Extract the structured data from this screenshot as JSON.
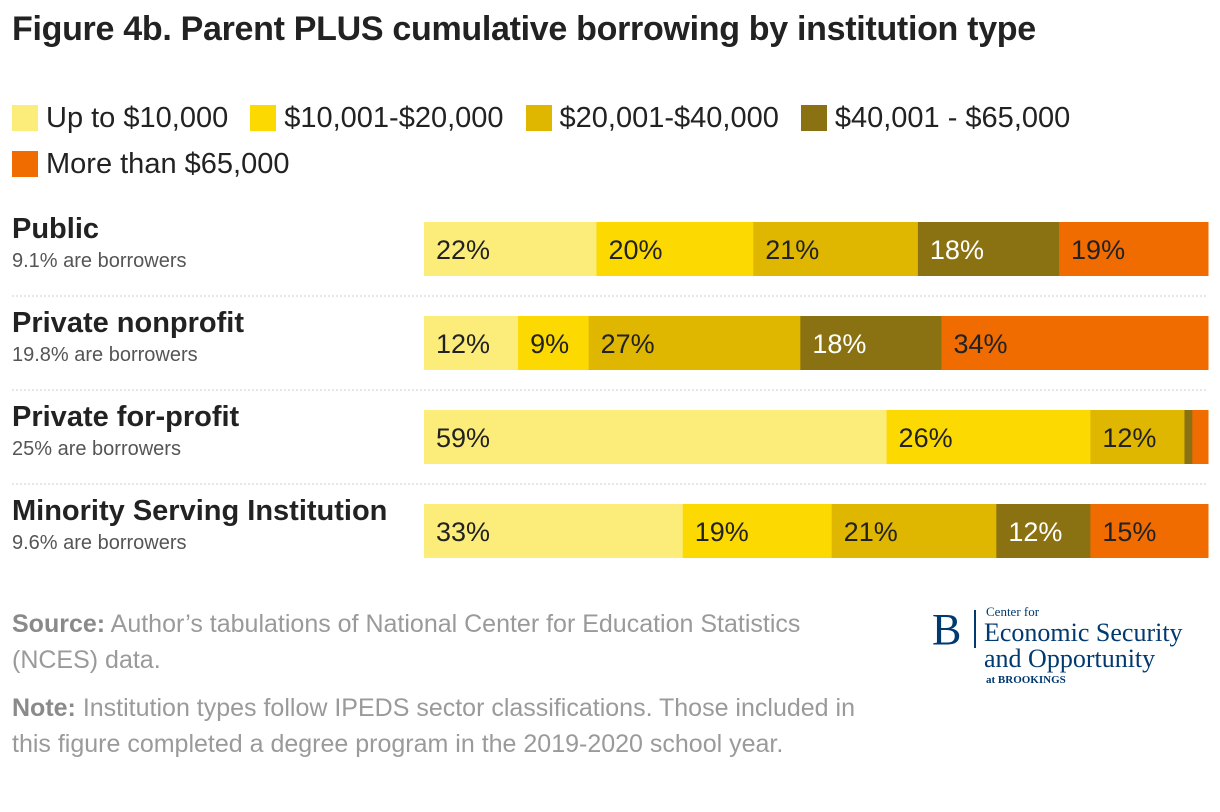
{
  "title": "Figure 4b. Parent PLUS cumulative borrowing by institution type",
  "legend": [
    {
      "label": "Up to $10,000",
      "color": "#fcec79"
    },
    {
      "label": "$10,001-$20,000",
      "color": "#fcd900"
    },
    {
      "label": "$20,001-$40,000",
      "color": "#dfb600"
    },
    {
      "label": "$40,001 - $65,000",
      "color": "#8a7212"
    },
    {
      "label": "More than $65,000",
      "color": "#f06b00"
    }
  ],
  "rows": [
    {
      "name": "Public",
      "sub": "9.1% are borrowers"
    },
    {
      "name": "Private nonprofit",
      "sub": "19.8% are borrowers"
    },
    {
      "name": "Private for-profit",
      "sub": "25% are borrowers"
    },
    {
      "name": "Minority Serving Institution",
      "sub": "9.6% are borrowers"
    }
  ],
  "chart_data": {
    "type": "bar",
    "orientation": "horizontal",
    "stacked": true,
    "normalized_percent": true,
    "categories": [
      "Public",
      "Private nonprofit",
      "Private for-profit",
      "Minority Serving Institution"
    ],
    "series": [
      {
        "name": "Up to $10,000",
        "color": "#fcec79",
        "values": [
          22,
          12,
          59,
          33
        ]
      },
      {
        "name": "$10,001-$20,000",
        "color": "#fcd900",
        "values": [
          20,
          9,
          26,
          19
        ]
      },
      {
        "name": "$20,001-$40,000",
        "color": "#dfb600",
        "values": [
          21,
          27,
          12,
          21
        ]
      },
      {
        "name": "$40,001 - $65,000",
        "color": "#8a7212",
        "values": [
          18,
          18,
          1,
          12
        ]
      },
      {
        "name": "More than $65,000",
        "color": "#f06b00",
        "values": [
          19,
          34,
          2,
          15
        ]
      }
    ],
    "data_labels": [
      [
        "22%",
        "20%",
        "21%",
        "18%",
        "19%"
      ],
      [
        "12%",
        "9%",
        "27%",
        "18%",
        "34%"
      ],
      [
        "59%",
        "26%",
        "12%",
        "",
        ""
      ],
      [
        "33%",
        "19%",
        "21%",
        "12%",
        "15%"
      ]
    ],
    "xlim": [
      0,
      100
    ],
    "legend_position": "top",
    "grid": false
  },
  "source_label": "Source:",
  "source_text": " Author’s tabulations of National Center for Education Statistics (NCES) data.",
  "note_label": "Note:",
  "note_text": " Institution types follow IPEDS sector classifications. Those included in this figure completed a degree program in the 2019-2020 school year.",
  "logo": {
    "letter": "B",
    "small": "Center for",
    "line1": "Economic Security",
    "line2": "and Opportunity",
    "line3": "at BROOKINGS"
  }
}
